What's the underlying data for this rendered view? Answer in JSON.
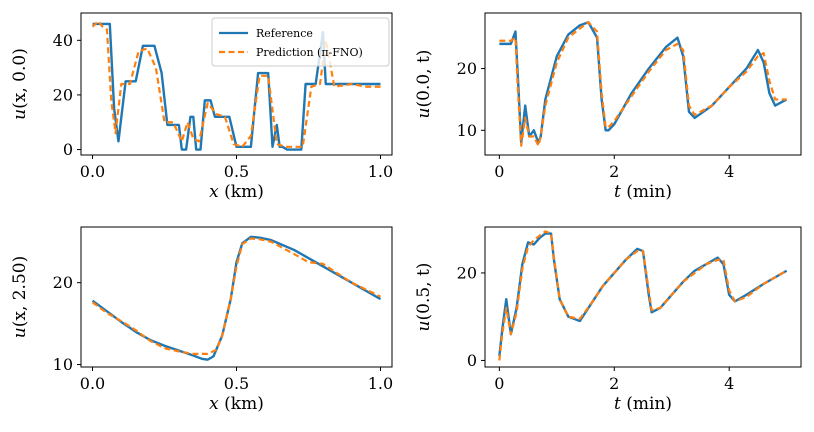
{
  "colors": {
    "reference": "#1f77b4",
    "prediction": "#ff7f0e"
  },
  "legend": {
    "reference_label": "Reference",
    "prediction_label": "Prediction (π-FNO)"
  },
  "chart_data": [
    {
      "type": "line",
      "id": "p1",
      "ylabel": {
        "func": "u",
        "args": "(x, 0.0)"
      },
      "xlabel": {
        "var": "x",
        "unit": "(km)"
      },
      "xlim": [
        -0.04,
        1.04
      ],
      "ylim": [
        -2,
        50
      ],
      "xticks": [
        0.0,
        0.5,
        1.0
      ],
      "xtick_labels": [
        "0.0",
        "0.5",
        "1.0"
      ],
      "yticks": [
        0,
        20,
        40
      ],
      "ytick_labels": [
        "0",
        "20",
        "40"
      ],
      "legend": true,
      "series": [
        {
          "name": "Reference",
          "x": [
            0.0,
            0.02,
            0.04,
            0.06,
            0.075,
            0.09,
            0.115,
            0.125,
            0.15,
            0.175,
            0.2,
            0.215,
            0.24,
            0.26,
            0.275,
            0.3,
            0.31,
            0.325,
            0.34,
            0.35,
            0.36,
            0.375,
            0.39,
            0.41,
            0.425,
            0.45,
            0.475,
            0.5,
            0.51,
            0.525,
            0.54,
            0.55,
            0.56,
            0.575,
            0.59,
            0.61,
            0.625,
            0.64,
            0.65,
            0.66,
            0.675,
            0.7,
            0.725,
            0.74,
            0.755,
            0.765,
            0.775,
            0.8,
            0.81,
            0.825,
            0.85,
            0.9,
            0.95,
            1.0
          ],
          "y": [
            46,
            46,
            46,
            46,
            15,
            3,
            25,
            25,
            25,
            38,
            38,
            38,
            28,
            9,
            9,
            9,
            0,
            0,
            12,
            12,
            0,
            0,
            18,
            18,
            12,
            12,
            12,
            1,
            1,
            1,
            1,
            1,
            12,
            28,
            28,
            28,
            1,
            9,
            1,
            1,
            0,
            0,
            0,
            24,
            24,
            24,
            24,
            43,
            24,
            24,
            24,
            24,
            24,
            24
          ]
        },
        {
          "name": "Prediction (π-FNO)",
          "x": [
            0.0,
            0.02,
            0.035,
            0.05,
            0.065,
            0.08,
            0.1,
            0.13,
            0.16,
            0.19,
            0.22,
            0.25,
            0.28,
            0.31,
            0.33,
            0.35,
            0.37,
            0.4,
            0.43,
            0.46,
            0.49,
            0.52,
            0.55,
            0.58,
            0.61,
            0.64,
            0.67,
            0.7,
            0.73,
            0.76,
            0.79,
            0.81,
            0.84,
            0.9,
            0.95,
            1.0
          ],
          "y": [
            45,
            47,
            45,
            44,
            18,
            6,
            24,
            24,
            36,
            37,
            30,
            10,
            10,
            3,
            10,
            4,
            3,
            17,
            13,
            12,
            2,
            1,
            5,
            27,
            27,
            2,
            1,
            1,
            1,
            23,
            24,
            40,
            23,
            24,
            23,
            23
          ]
        }
      ]
    },
    {
      "type": "line",
      "id": "p2",
      "ylabel": {
        "func": "u",
        "args": "(0.0, t)"
      },
      "xlabel": {
        "var": "t",
        "unit": "(min)"
      },
      "xlim": [
        -0.25,
        5.25
      ],
      "ylim": [
        6,
        29
      ],
      "xticks": [
        0,
        2,
        4
      ],
      "xtick_labels": [
        "0",
        "2",
        "4"
      ],
      "yticks": [
        10,
        20
      ],
      "ytick_labels": [
        "10",
        "20"
      ],
      "legend": false,
      "series": [
        {
          "name": "Reference",
          "x": [
            0.0,
            0.1,
            0.2,
            0.28,
            0.32,
            0.38,
            0.45,
            0.52,
            0.6,
            0.68,
            0.72,
            0.8,
            1.0,
            1.2,
            1.4,
            1.55,
            1.7,
            1.78,
            1.85,
            1.9,
            2.0,
            2.3,
            2.6,
            2.9,
            3.1,
            3.2,
            3.3,
            3.4,
            3.7,
            4.0,
            4.3,
            4.5,
            4.6,
            4.7,
            4.8,
            5.0
          ],
          "y": [
            24,
            24,
            24,
            26,
            19,
            8,
            14,
            9,
            10,
            8,
            9,
            15,
            22,
            25.5,
            27,
            27.5,
            25,
            15,
            10,
            10,
            11,
            16,
            20,
            23.5,
            25,
            22,
            13,
            12,
            14,
            17,
            20,
            23,
            21,
            16,
            14,
            15
          ]
        },
        {
          "name": "Prediction (π-FNO)",
          "x": [
            0.0,
            0.1,
            0.2,
            0.28,
            0.32,
            0.38,
            0.45,
            0.52,
            0.6,
            0.68,
            0.72,
            0.8,
            1.0,
            1.2,
            1.4,
            1.55,
            1.7,
            1.78,
            1.85,
            1.9,
            2.0,
            2.3,
            2.6,
            2.9,
            3.1,
            3.2,
            3.3,
            3.4,
            3.7,
            4.0,
            4.3,
            4.5,
            4.6,
            4.7,
            4.8,
            5.0
          ],
          "y": [
            24.5,
            24.5,
            24.5,
            25,
            17,
            7.5,
            12,
            9,
            9,
            7.5,
            9,
            14,
            21,
            25,
            26.5,
            27.5,
            26,
            16,
            10.5,
            10.5,
            11.5,
            15.5,
            19.5,
            23,
            24,
            23,
            14,
            12.5,
            14,
            17,
            19.5,
            22,
            22.5,
            18,
            15,
            15
          ]
        }
      ]
    },
    {
      "type": "line",
      "id": "p3",
      "ylabel": {
        "func": "u",
        "args": "(x, 2.50)"
      },
      "xlabel": {
        "var": "x",
        "unit": "(km)"
      },
      "xlim": [
        -0.04,
        1.04
      ],
      "ylim": [
        9.7,
        26.8
      ],
      "xticks": [
        0.0,
        0.5,
        1.0
      ],
      "xtick_labels": [
        "0.0",
        "0.5",
        "1.0"
      ],
      "yticks": [
        10,
        20
      ],
      "ytick_labels": [
        "10",
        "20"
      ],
      "legend": false,
      "series": [
        {
          "name": "Reference",
          "x": [
            0.0,
            0.05,
            0.1,
            0.15,
            0.2,
            0.25,
            0.3,
            0.35,
            0.38,
            0.4,
            0.42,
            0.45,
            0.48,
            0.5,
            0.52,
            0.55,
            0.58,
            0.62,
            0.7,
            0.8,
            0.9,
            1.0
          ],
          "y": [
            17.8,
            16.5,
            15.2,
            14,
            13,
            12.3,
            11.7,
            11.1,
            10.7,
            10.6,
            11,
            13.5,
            18,
            22.5,
            24.8,
            25.6,
            25.5,
            25.2,
            24,
            22,
            20,
            18
          ]
        },
        {
          "name": "Prediction (π-FNO)",
          "x": [
            0.0,
            0.05,
            0.1,
            0.15,
            0.2,
            0.25,
            0.3,
            0.35,
            0.4,
            0.43,
            0.45,
            0.48,
            0.5,
            0.52,
            0.55,
            0.58,
            0.62,
            0.7,
            0.75,
            0.8,
            0.9,
            1.0
          ],
          "y": [
            17.6,
            16.3,
            15.3,
            14.2,
            12.9,
            12,
            11.6,
            11.3,
            11.3,
            11.8,
            13.5,
            18,
            22,
            24.7,
            25.4,
            25.3,
            25,
            23.5,
            22.5,
            22.3,
            20,
            18.3
          ]
        }
      ]
    },
    {
      "type": "line",
      "id": "p4",
      "ylabel": {
        "func": "u",
        "args": "(0.5, t)"
      },
      "xlabel": {
        "var": "t",
        "unit": "(min)"
      },
      "xlim": [
        -0.25,
        5.25
      ],
      "ylim": [
        -1.5,
        30.5
      ],
      "xticks": [
        0,
        2,
        4
      ],
      "xtick_labels": [
        "0",
        "2",
        "4"
      ],
      "yticks": [
        0,
        20
      ],
      "ytick_labels": [
        "0",
        "20"
      ],
      "legend": false,
      "series": [
        {
          "name": "Reference",
          "x": [
            0.0,
            0.05,
            0.12,
            0.2,
            0.3,
            0.4,
            0.5,
            0.6,
            0.7,
            0.8,
            0.9,
            0.95,
            1.05,
            1.2,
            1.4,
            1.6,
            1.8,
            2.0,
            2.2,
            2.4,
            2.5,
            2.6,
            2.65,
            2.8,
            3.0,
            3.2,
            3.4,
            3.6,
            3.8,
            3.9,
            4.0,
            4.1,
            4.3,
            4.6,
            5.0
          ],
          "y": [
            1,
            7,
            14,
            6,
            12,
            22,
            27,
            26.5,
            28,
            29,
            29,
            23,
            14,
            10,
            9,
            13,
            17,
            20,
            23,
            25.5,
            25,
            15,
            11,
            12,
            15,
            18,
            20.5,
            22,
            23.5,
            22,
            15,
            13.5,
            15,
            17.5,
            20.5
          ]
        },
        {
          "name": "Prediction (π-FNO)",
          "x": [
            0.0,
            0.05,
            0.12,
            0.2,
            0.3,
            0.4,
            0.5,
            0.6,
            0.7,
            0.8,
            0.9,
            0.95,
            1.05,
            1.2,
            1.4,
            1.6,
            1.8,
            2.0,
            2.2,
            2.4,
            2.5,
            2.6,
            2.65,
            2.8,
            3.0,
            3.2,
            3.4,
            3.6,
            3.8,
            3.9,
            4.0,
            4.1,
            4.3,
            4.6,
            5.0
          ],
          "y": [
            0,
            6,
            12,
            6,
            11,
            21,
            26,
            27.5,
            28.5,
            29.5,
            29,
            23.5,
            14,
            10,
            9.5,
            13,
            17,
            20,
            23,
            25,
            25,
            16,
            11.5,
            12,
            15,
            18,
            20,
            22,
            23,
            23,
            16,
            13.5,
            14.5,
            17.5,
            20.5
          ]
        }
      ]
    }
  ]
}
